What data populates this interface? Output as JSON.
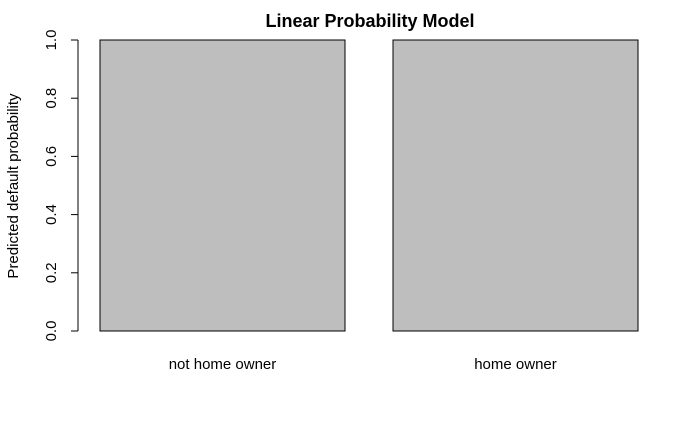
{
  "chart_data": {
    "type": "bar",
    "title": "Linear Probability Model",
    "xlabel": "",
    "ylabel": "Predicted default probability",
    "categories": [
      "not home owner",
      "home owner"
    ],
    "values": [
      1.0,
      1.0
    ],
    "ylim": [
      0,
      1
    ],
    "yticks": [
      "0.0",
      "0.2",
      "0.4",
      "0.6",
      "0.8",
      "1.0"
    ],
    "grid": false,
    "bar_color": "#bebebe",
    "border_color": "#000000"
  }
}
